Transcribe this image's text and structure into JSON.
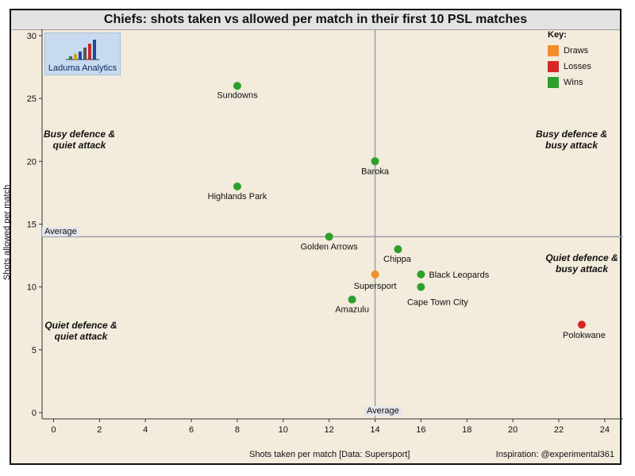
{
  "title": "Chiefs: shots taken vs allowed per match in their first 10 PSL matches",
  "footer": {
    "x_caption": "Shots taken per match [Data: Supersport]",
    "credit": "Inspiration: @experimental361"
  },
  "logo": {
    "text": "Laduma Analytics",
    "bar_colors": [
      "#2e7d32",
      "#c9a227",
      "#1b4b99",
      "#555555",
      "#c62828",
      "#1b4b99"
    ]
  },
  "legend": {
    "title": "Key:",
    "items": [
      {
        "label": "Draws",
        "color": "#f28e2b"
      },
      {
        "label": "Losses",
        "color": "#d62728"
      },
      {
        "label": "Wins",
        "color": "#2ca02c"
      }
    ]
  },
  "quadrants": {
    "top_left": [
      "Busy defence &",
      "quiet attack"
    ],
    "top_right": [
      "Busy defence &",
      "busy attack"
    ],
    "bottom_left": [
      "Quiet defence &",
      "quiet attack"
    ],
    "bottom_right": [
      "Quiet defence &",
      "busy attack"
    ]
  },
  "average_labels": {
    "horizontal": "Average",
    "vertical": "Average"
  },
  "chart_data": {
    "type": "scatter",
    "title": "Chiefs: shots taken vs allowed per match in their first 10 PSL matches",
    "xlabel": "Shots taken per match [Data: Supersport]",
    "ylabel": "Shots allowed per match",
    "xlim": [
      -0.5,
      24.8
    ],
    "ylim": [
      -0.5,
      30.5
    ],
    "xticks": [
      0,
      2,
      4,
      6,
      8,
      10,
      12,
      14,
      16,
      18,
      20,
      22,
      24
    ],
    "yticks": [
      0,
      5,
      10,
      15,
      20,
      25,
      30
    ],
    "grid": false,
    "average_x": 14,
    "average_y": 14,
    "points": [
      {
        "label": "Sundowns",
        "x": 8,
        "y": 26,
        "result": "Wins"
      },
      {
        "label": "Baroka",
        "x": 14,
        "y": 20,
        "result": "Wins"
      },
      {
        "label": "Highlands Park",
        "x": 8,
        "y": 18,
        "result": "Wins"
      },
      {
        "label": "Golden Arrows",
        "x": 12,
        "y": 14,
        "result": "Wins"
      },
      {
        "label": "Chippa",
        "x": 15,
        "y": 13,
        "result": "Wins"
      },
      {
        "label": "Black Leopards",
        "x": 16,
        "y": 11,
        "result": "Wins"
      },
      {
        "label": "Supersport",
        "x": 14,
        "y": 11,
        "result": "Draws"
      },
      {
        "label": "Cape Town City",
        "x": 16,
        "y": 10,
        "result": "Wins"
      },
      {
        "label": "Amazulu",
        "x": 13,
        "y": 9,
        "result": "Wins"
      },
      {
        "label": "Polokwane",
        "x": 23,
        "y": 7,
        "result": "Losses"
      }
    ]
  }
}
